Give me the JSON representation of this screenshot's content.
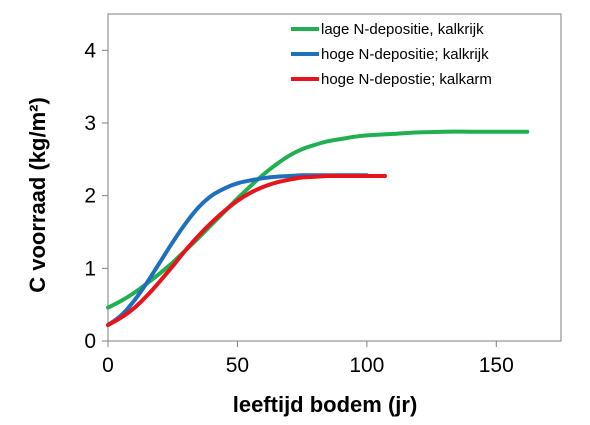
{
  "chart_data": {
    "type": "line",
    "xlabel": "leeftijd bodem (jr)",
    "ylabel": "C voorraad (kg/m²)",
    "xlim": [
      0,
      175
    ],
    "ylim": [
      0,
      4.5
    ],
    "xticks": [
      0,
      50,
      100,
      150
    ],
    "yticks": [
      0,
      1,
      2,
      3,
      4
    ],
    "grid": false,
    "legend_position": "top-right",
    "series": [
      {
        "name": "lage N-depositie, kalkrijk",
        "color": "#1fb14f",
        "x": [
          0,
          5,
          10,
          15,
          20,
          25,
          30,
          35,
          40,
          45,
          50,
          55,
          60,
          65,
          70,
          75,
          80,
          85,
          90,
          95,
          100,
          110,
          120,
          130,
          140,
          150,
          162
        ],
        "y": [
          0.46,
          0.55,
          0.66,
          0.79,
          0.93,
          1.08,
          1.25,
          1.42,
          1.6,
          1.78,
          1.96,
          2.13,
          2.29,
          2.43,
          2.55,
          2.64,
          2.7,
          2.75,
          2.78,
          2.81,
          2.83,
          2.85,
          2.87,
          2.88,
          2.88,
          2.88,
          2.88
        ]
      },
      {
        "name": "hoge N-depositie; kalkrijk",
        "color": "#1f6fbf",
        "x": [
          0,
          5,
          10,
          15,
          20,
          25,
          30,
          35,
          40,
          45,
          50,
          55,
          60,
          65,
          70,
          75,
          80,
          85,
          90,
          95,
          100
        ],
        "y": [
          0.22,
          0.35,
          0.55,
          0.8,
          1.08,
          1.36,
          1.62,
          1.84,
          2.0,
          2.1,
          2.17,
          2.21,
          2.24,
          2.26,
          2.27,
          2.28,
          2.28,
          2.28,
          2.28,
          2.28,
          2.28
        ]
      },
      {
        "name": "hoge N-depostie; kalkarm",
        "color": "#e8141c",
        "x": [
          0,
          5,
          10,
          15,
          20,
          25,
          30,
          35,
          40,
          45,
          50,
          55,
          60,
          65,
          70,
          75,
          80,
          85,
          90,
          95,
          100,
          107
        ],
        "y": [
          0.22,
          0.32,
          0.45,
          0.62,
          0.82,
          1.03,
          1.25,
          1.45,
          1.63,
          1.79,
          1.93,
          2.04,
          2.12,
          2.18,
          2.22,
          2.25,
          2.26,
          2.27,
          2.27,
          2.27,
          2.27,
          2.27
        ]
      }
    ]
  }
}
